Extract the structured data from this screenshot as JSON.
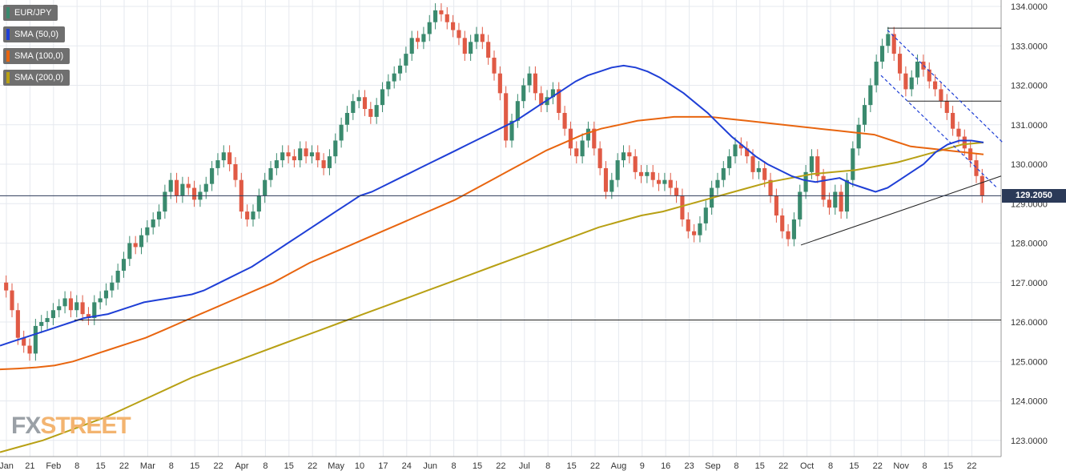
{
  "chart_data": {
    "type": "candlestick",
    "title": "EUR/JPY",
    "ylim": [
      122.8,
      134.2
    ],
    "y_ticks": [
      "123.0000",
      "124.0000",
      "125.0000",
      "126.0000",
      "127.0000",
      "128.0000",
      "129.0000",
      "130.0000",
      "131.0000",
      "132.0000",
      "133.0000",
      "134.0000"
    ],
    "x_ticks": [
      "Jan",
      "21",
      "Feb",
      "8",
      "15",
      "22",
      "Mar",
      "8",
      "15",
      "22",
      "Apr",
      "8",
      "15",
      "22",
      "May",
      "10",
      "17",
      "24",
      "Jun",
      "8",
      "15",
      "22",
      "Jul",
      "8",
      "15",
      "22",
      "Aug",
      "9",
      "16",
      "23",
      "Sep",
      "8",
      "15",
      "22",
      "Oct",
      "8",
      "15",
      "22",
      "Nov",
      "8",
      "15",
      "22"
    ],
    "last_price": "129.2050",
    "legend": [
      {
        "label": "EUR/JPY",
        "color": "#3a8a6e"
      },
      {
        "label": "SMA (50,0)",
        "color": "#1f3fd6"
      },
      {
        "label": "SMA (100,0)",
        "color": "#e8650f"
      },
      {
        "label": "SMA (200,0)",
        "color": "#b8a014"
      }
    ],
    "colors": {
      "up": "#3a8a6e",
      "down": "#e05a45",
      "sma50": "#1f3fd6",
      "sma100": "#e8650f",
      "sma200": "#b8a014",
      "grid": "#e6e9ef"
    },
    "close_series": [
      126.8,
      126.3,
      125.6,
      125.4,
      125.2,
      125.9,
      126.0,
      126.1,
      126.3,
      126.4,
      126.6,
      126.3,
      126.5,
      126.2,
      126.1,
      126.5,
      126.6,
      126.8,
      127.0,
      127.3,
      127.6,
      128.0,
      127.9,
      128.2,
      128.4,
      128.6,
      128.8,
      129.3,
      129.6,
      129.2,
      129.5,
      129.4,
      129.1,
      129.3,
      129.5,
      129.9,
      130.1,
      130.3,
      130.0,
      129.6,
      128.8,
      128.6,
      128.8,
      129.2,
      129.6,
      129.9,
      130.1,
      130.3,
      130.2,
      130.1,
      130.4,
      130.2,
      130.3,
      130.1,
      129.9,
      130.2,
      130.6,
      131.0,
      131.3,
      131.6,
      131.7,
      131.4,
      131.2,
      131.5,
      131.9,
      132.1,
      132.3,
      132.5,
      132.8,
      133.2,
      133.1,
      133.3,
      133.6,
      133.9,
      133.8,
      133.6,
      133.4,
      133.2,
      132.8,
      133.1,
      133.3,
      133.1,
      132.7,
      132.3,
      131.8,
      130.6,
      131.1,
      131.6,
      132.0,
      132.3,
      131.8,
      131.5,
      131.7,
      131.9,
      131.3,
      130.9,
      130.4,
      130.2,
      130.6,
      130.9,
      130.4,
      129.9,
      129.3,
      129.6,
      130.1,
      130.3,
      130.2,
      129.8,
      129.7,
      129.8,
      129.6,
      129.5,
      129.6,
      129.4,
      129.2,
      128.6,
      128.3,
      128.2,
      128.5,
      128.9,
      129.4,
      129.6,
      129.9,
      130.2,
      130.5,
      130.4,
      130.2,
      129.8,
      129.9,
      129.6,
      129.2,
      128.7,
      128.3,
      128.1,
      128.6,
      129.3,
      129.8,
      130.2,
      129.7,
      129.1,
      128.9,
      129.3,
      128.8,
      129.6,
      130.4,
      131.0,
      131.5,
      132.0,
      132.6,
      133.0,
      133.3,
      132.8,
      132.3,
      131.9,
      132.2,
      132.6,
      132.4,
      132.1,
      131.9,
      131.6,
      131.3,
      130.9,
      130.7,
      130.4,
      130.1,
      129.7,
      129.2
    ],
    "sma50": [
      125.4,
      125.5,
      125.6,
      125.7,
      125.8,
      125.9,
      126.0,
      126.1,
      126.15,
      126.2,
      126.3,
      126.4,
      126.5,
      126.55,
      126.6,
      126.65,
      126.7,
      126.8,
      126.95,
      127.1,
      127.25,
      127.4,
      127.6,
      127.8,
      128.0,
      128.2,
      128.4,
      128.6,
      128.8,
      129.0,
      129.2,
      129.3,
      129.45,
      129.6,
      129.75,
      129.9,
      130.05,
      130.2,
      130.35,
      130.5,
      130.65,
      130.8,
      130.95,
      131.1,
      131.3,
      131.5,
      131.7,
      131.9,
      132.1,
      132.25,
      132.35,
      132.45,
      132.5,
      132.45,
      132.35,
      132.2,
      132.0,
      131.8,
      131.55,
      131.3,
      131.0,
      130.7,
      130.45,
      130.2,
      130.0,
      129.85,
      129.7,
      129.6,
      129.55,
      129.6,
      129.65,
      129.5,
      129.4,
      129.3,
      129.4,
      129.6,
      129.8,
      130.0,
      130.3,
      130.5,
      130.6,
      130.6,
      130.55
    ],
    "sma100": [
      124.8,
      124.82,
      124.85,
      124.9,
      125.0,
      125.15,
      125.3,
      125.45,
      125.6,
      125.8,
      126.0,
      126.2,
      126.4,
      126.6,
      126.8,
      127.0,
      127.25,
      127.5,
      127.7,
      127.9,
      128.1,
      128.3,
      128.5,
      128.7,
      128.9,
      129.1,
      129.35,
      129.6,
      129.85,
      130.1,
      130.35,
      130.55,
      130.75,
      130.9,
      131.0,
      131.1,
      131.15,
      131.2,
      131.2,
      131.2,
      131.15,
      131.1,
      131.05,
      131.0,
      130.95,
      130.9,
      130.85,
      130.8,
      130.75,
      130.6,
      130.45,
      130.4,
      130.35,
      130.3,
      130.25
    ],
    "sma200": [
      122.7,
      122.85,
      123.0,
      123.2,
      123.4,
      123.6,
      123.85,
      124.1,
      124.35,
      124.6,
      124.8,
      125.0,
      125.2,
      125.4,
      125.6,
      125.8,
      126.0,
      126.2,
      126.4,
      126.6,
      126.8,
      127.0,
      127.2,
      127.4,
      127.6,
      127.8,
      128.0,
      128.2,
      128.4,
      128.55,
      128.7,
      128.8,
      128.95,
      129.1,
      129.25,
      129.4,
      129.55,
      129.65,
      129.75,
      129.8,
      129.85,
      129.95,
      130.05,
      130.2,
      130.35,
      130.5,
      130.55
    ]
  }
}
